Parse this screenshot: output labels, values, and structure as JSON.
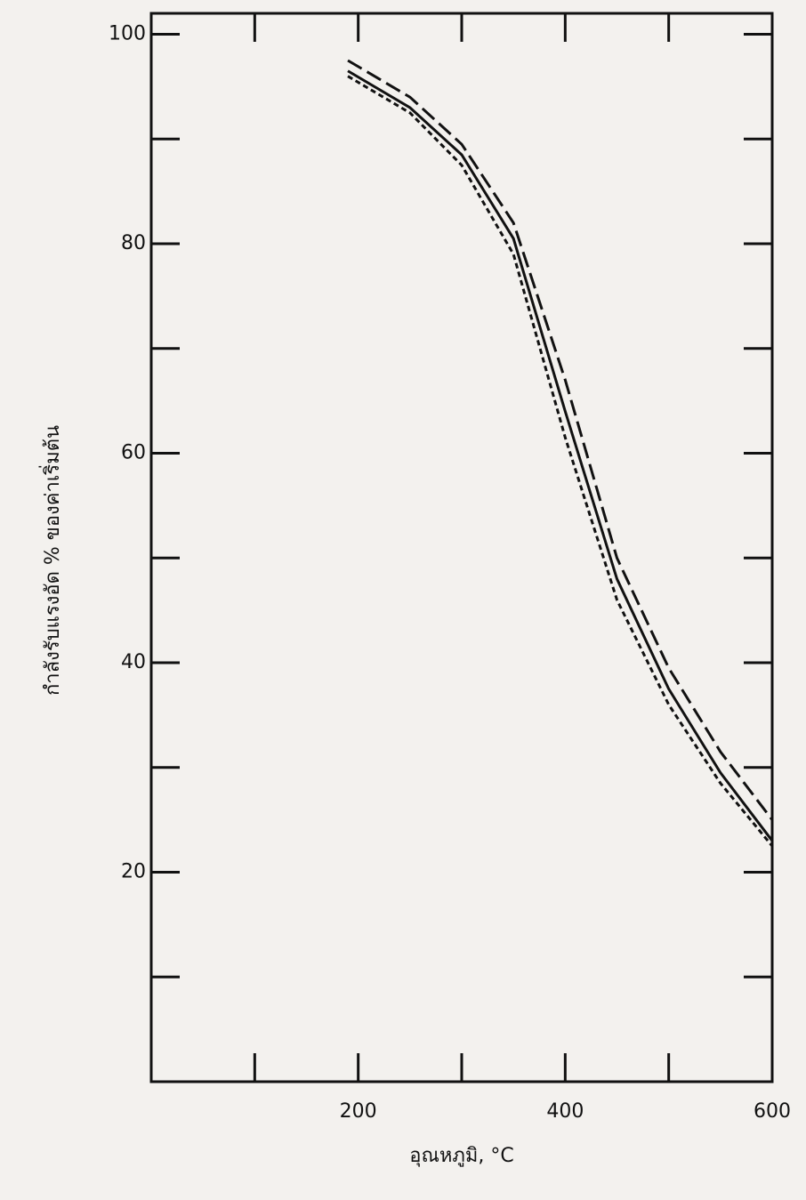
{
  "chart_data": {
    "type": "line",
    "xlabel": "อุณหภูมิ, °C",
    "ylabel": "กำลังรับแรงอัด    % ของค่าเริ่มต้น",
    "x": [
      190,
      250,
      300,
      350,
      400,
      450,
      500,
      550,
      600
    ],
    "series": [
      {
        "color": "#111111",
        "line_style": "long-dash",
        "values": [
          97.5,
          94,
          89.5,
          82,
          67,
          50,
          39.5,
          31.5,
          25
        ]
      },
      {
        "color": "#111111",
        "line_style": "solid",
        "values": [
          96.5,
          93,
          88.5,
          80.5,
          64,
          48,
          37.5,
          29.5,
          23
        ]
      },
      {
        "color": "#111111",
        "line_style": "short-dash",
        "values": [
          96,
          92.5,
          87.5,
          79,
          61.5,
          46,
          36,
          28.5,
          22.5
        ]
      }
    ],
    "xlim": [
      0,
      600
    ],
    "xticks": [
      200,
      400,
      600
    ],
    "xminor_ticks": [
      100,
      300,
      500
    ],
    "ylim": [
      0,
      102
    ],
    "yticks": [
      20,
      40,
      60,
      80,
      100
    ],
    "yminor_ticks": [
      10,
      30,
      50,
      70,
      90
    ]
  }
}
